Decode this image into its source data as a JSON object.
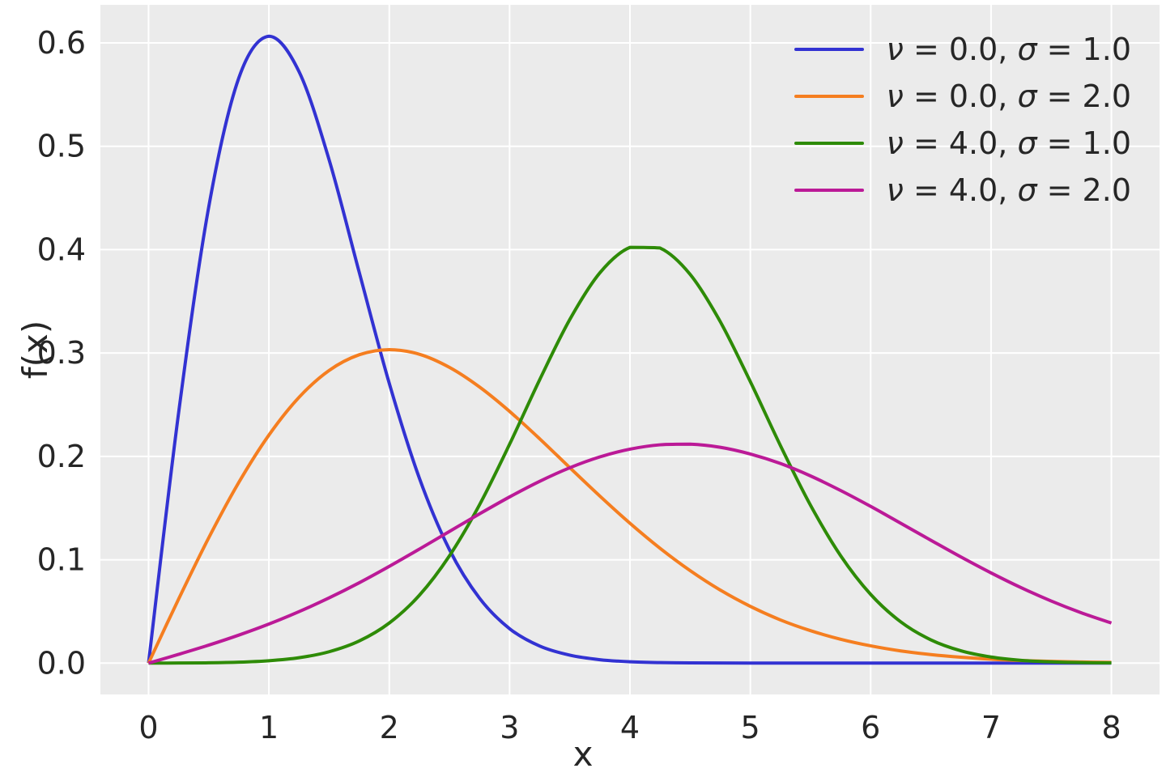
{
  "chart_data": {
    "type": "line",
    "title": "",
    "xlabel": "x",
    "ylabel": "f(x)",
    "xlim": [
      -0.4,
      8.4
    ],
    "ylim": [
      -0.0303,
      0.6368
    ],
    "xticks": [
      0,
      1,
      2,
      3,
      4,
      5,
      6,
      7,
      8
    ],
    "yticks": [
      0.0,
      0.1,
      0.2,
      0.3,
      0.4,
      0.5,
      0.6
    ],
    "grid": true,
    "legend_position": "upper right",
    "x": [
      0,
      0.25,
      0.5,
      0.75,
      1,
      1.25,
      1.5,
      1.75,
      2,
      2.25,
      2.5,
      2.75,
      3,
      3.25,
      3.5,
      3.75,
      4,
      4.25,
      4.5,
      4.75,
      5,
      5.25,
      5.5,
      5.75,
      6,
      6.25,
      6.5,
      6.75,
      7,
      7.25,
      7.5,
      7.75,
      8
    ],
    "series": [
      {
        "name": "ν = 0.0, σ = 1.0",
        "color": "#3232d2",
        "values": [
          0,
          0.2423,
          0.4412,
          0.5661,
          0.6065,
          0.5723,
          0.487,
          0.3783,
          0.2707,
          0.179,
          0.1098,
          0.0628,
          0.0333,
          0.0165,
          0.0077,
          0.0033,
          0.0013,
          0.0005,
          0.0002,
          0.0001,
          0,
          0,
          0,
          0,
          0,
          0,
          0,
          0,
          0,
          0,
          0,
          0,
          0
        ]
      },
      {
        "name": "ν = 0.0, σ = 2.0",
        "color": "#f57e20",
        "values": [
          0,
          0.062,
          0.1212,
          0.1748,
          0.2206,
          0.2571,
          0.2831,
          0.2983,
          0.3033,
          0.2988,
          0.2861,
          0.2671,
          0.2435,
          0.217,
          0.1891,
          0.1616,
          0.1353,
          0.1111,
          0.0895,
          0.0707,
          0.0549,
          0.0418,
          0.0314,
          0.0231,
          0.0167,
          0.0118,
          0.0083,
          0.0057,
          0.0038,
          0.0025,
          0.0017,
          0.0011,
          0.0007
        ]
      },
      {
        "name": "ν = 4.0, σ = 1.0",
        "color": "#2e8b07",
        "values": [
          0,
          0.0001,
          0.0003,
          0.0009,
          0.0023,
          0.0052,
          0.011,
          0.0214,
          0.0388,
          0.0656,
          0.1038,
          0.1532,
          0.2118,
          0.2742,
          0.3324,
          0.3776,
          0.4022,
          0.4016,
          0.3761,
          0.3304,
          0.2723,
          0.2105,
          0.1528,
          0.104,
          0.0665,
          0.0399,
          0.0225,
          0.0119,
          0.0059,
          0.0027,
          0.0012,
          0.0005,
          0.0002
        ]
      },
      {
        "name": "ν = 4.0, σ = 2.0",
        "color": "#bb1a97",
        "values": [
          0,
          0.0085,
          0.0174,
          0.0271,
          0.0378,
          0.0498,
          0.0631,
          0.0777,
          0.0936,
          0.1103,
          0.1274,
          0.1444,
          0.1608,
          0.1759,
          0.189,
          0.1995,
          0.207,
          0.2112,
          0.2118,
          0.2088,
          0.2023,
          0.1931,
          0.1811,
          0.167,
          0.1516,
          0.1353,
          0.1189,
          0.1027,
          0.0873,
          0.073,
          0.0601,
          0.0487,
          0.0388
        ]
      }
    ],
    "style": {
      "plot_bg": "#ebebeb",
      "grid_color": "#ffffff",
      "text_color": "#262626",
      "tick_font_size": 38,
      "line_width": 4
    }
  }
}
